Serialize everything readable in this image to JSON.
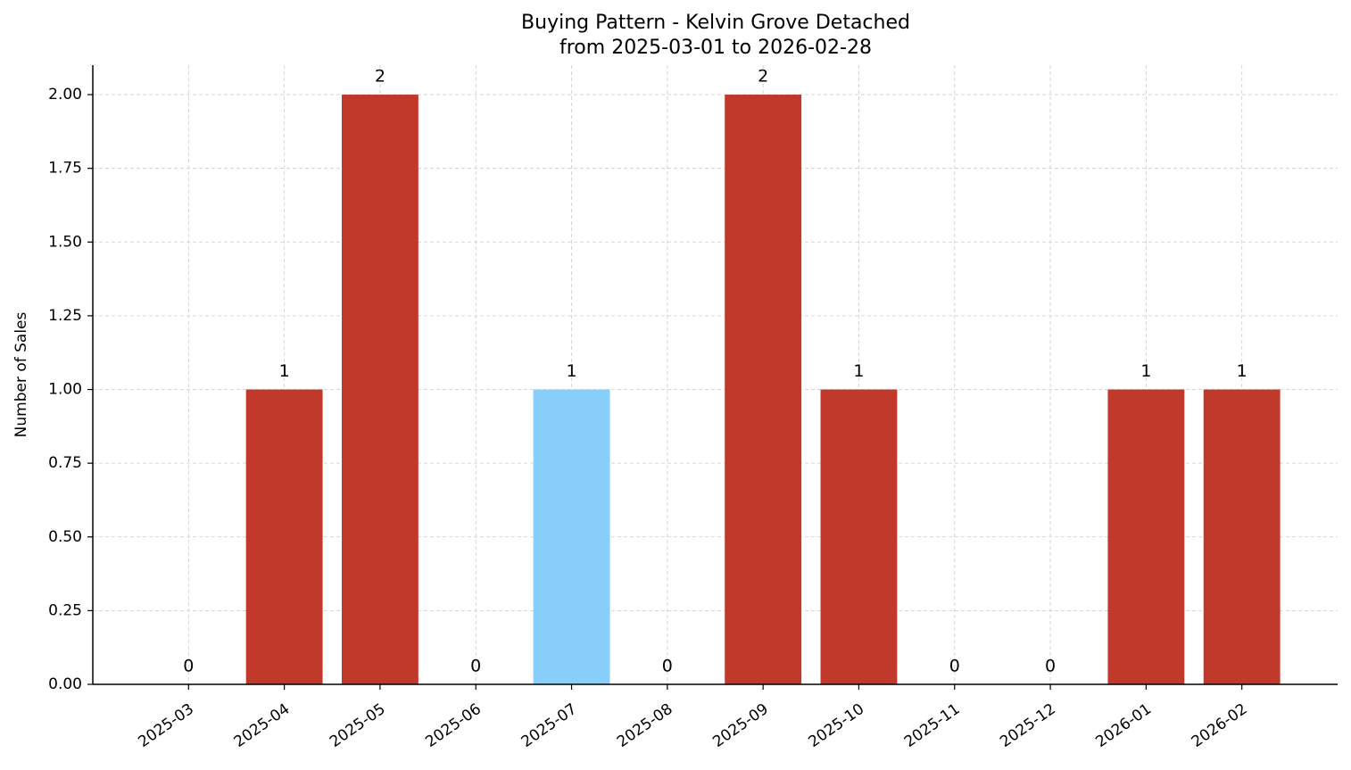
{
  "chart_data": {
    "type": "bar",
    "title": "Buying Pattern - Kelvin Grove Detached",
    "subtitle": "from 2025-03-01 to 2026-02-28",
    "y_label": "Number of Sales",
    "categories": [
      "2025-03",
      "2025-04",
      "2025-05",
      "2025-06",
      "2025-07",
      "2025-08",
      "2025-09",
      "2025-10",
      "2025-11",
      "2025-12",
      "2026-01",
      "2026-02"
    ],
    "values": [
      0,
      1,
      2,
      0,
      1,
      0,
      2,
      1,
      0,
      0,
      1,
      1
    ],
    "colors": [
      "#c0392b",
      "#c0392b",
      "#c0392b",
      "#c0392b",
      "#87cefa",
      "#c0392b",
      "#c0392b",
      "#c0392b",
      "#c0392b",
      "#c0392b",
      "#c0392b",
      "#c0392b"
    ],
    "ylim": [
      0,
      2.1
    ],
    "yticks": [
      {
        "value": 0,
        "label": "0.00"
      },
      {
        "value": 0.25,
        "label": "0.25"
      },
      {
        "value": 0.5,
        "label": "0.50"
      },
      {
        "value": 0.75,
        "label": "0.75"
      },
      {
        "value": 1,
        "label": "1.00"
      },
      {
        "value": 1.25,
        "label": "1.25"
      },
      {
        "value": 1.5,
        "label": "1.50"
      },
      {
        "value": 1.75,
        "label": "1.75"
      },
      {
        "value": 2,
        "label": "2.00"
      }
    ],
    "grid": true
  }
}
